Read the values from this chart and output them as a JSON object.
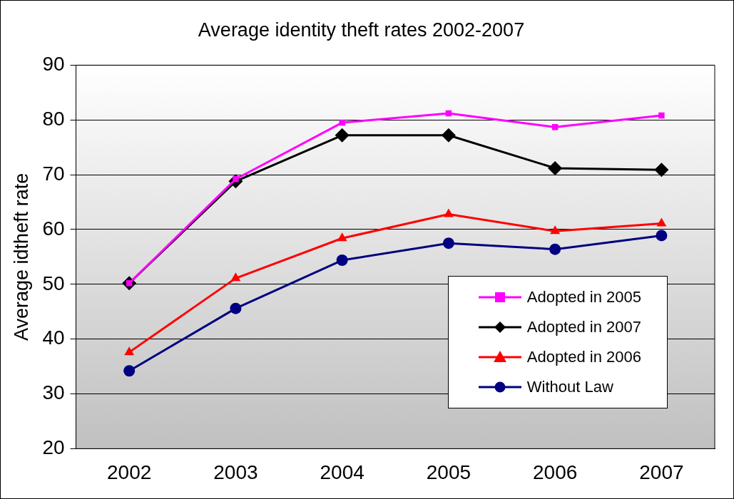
{
  "chart_data": {
    "type": "line",
    "title": "Average identity theft rates 2002-2007",
    "ylabel": "Average idtheft rate",
    "categories": [
      "2002",
      "2003",
      "2004",
      "2005",
      "2006",
      "2007"
    ],
    "series": [
      {
        "name": "Adopted in 2005",
        "color": "#ff00ff",
        "marker": "square",
        "values": [
          50.2,
          69.2,
          79.5,
          81.2,
          78.7,
          80.8
        ]
      },
      {
        "name": "Adopted in 2007",
        "color": "#000000",
        "marker": "diamond",
        "values": [
          50.2,
          68.8,
          77.2,
          77.2,
          71.2,
          70.9
        ]
      },
      {
        "name": "Adopted in 2006",
        "color": "#ff0000",
        "marker": "triangle",
        "values": [
          37.6,
          51.1,
          58.4,
          62.8,
          59.7,
          61.1
        ]
      },
      {
        "name": "Without Law",
        "color": "#000080",
        "marker": "circle",
        "values": [
          34.2,
          45.6,
          54.4,
          57.5,
          56.4,
          58.9
        ]
      }
    ],
    "ylim": [
      20,
      90
    ],
    "yticks": [
      20,
      30,
      40,
      50,
      60,
      70,
      80,
      90
    ],
    "grid": "y",
    "legend": "bottom right"
  }
}
